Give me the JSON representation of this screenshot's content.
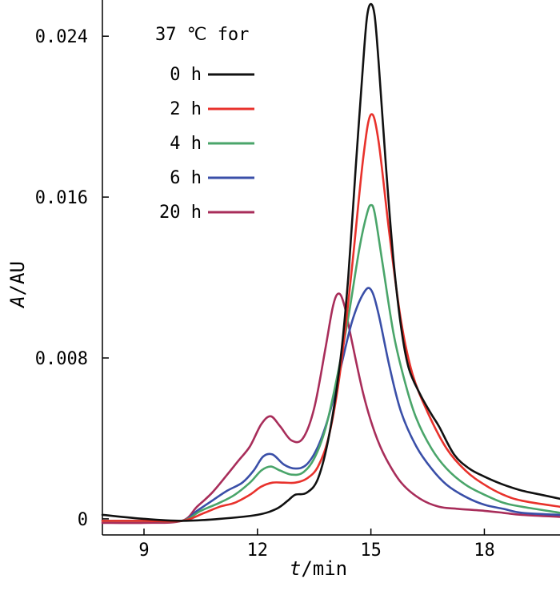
{
  "chart_data": {
    "type": "line",
    "xlabel_italic": "t",
    "xlabel_unit": "/min",
    "ylabel_italic": "A",
    "ylabel_unit": "/AU",
    "xlim": [
      7.9,
      20.0
    ],
    "ylim": [
      -0.0008,
      0.0258
    ],
    "x_ticks": [
      9,
      12,
      15,
      18
    ],
    "x_tick_labels": [
      "9",
      "12",
      "15",
      "18"
    ],
    "y_ticks": [
      0,
      0.008,
      0.016,
      0.024
    ],
    "y_tick_labels": [
      "0",
      "0.008",
      "0.016",
      "0.024"
    ],
    "legend_title": "37 ℃ for",
    "legend_placement": "top-left",
    "series": [
      {
        "name": "0 h",
        "color": "#111111",
        "x": [
          7.9,
          9.0,
          10.0,
          11.0,
          12.0,
          12.5,
          12.8,
          13.0,
          13.3,
          13.6,
          13.9,
          14.2,
          14.4,
          14.6,
          14.8,
          14.9,
          15.0,
          15.1,
          15.2,
          15.4,
          15.6,
          15.8,
          16.0,
          16.3,
          16.6,
          16.8,
          17.2,
          17.6,
          18.0,
          18.5,
          19.0,
          19.5,
          20.0
        ],
        "y": [
          0.0002,
          0.0,
          -0.0001,
          0.0,
          0.0002,
          0.0005,
          0.0009,
          0.0012,
          0.0013,
          0.002,
          0.0042,
          0.008,
          0.012,
          0.0175,
          0.0228,
          0.025,
          0.0256,
          0.025,
          0.0228,
          0.0175,
          0.0128,
          0.0095,
          0.0075,
          0.0062,
          0.0052,
          0.0046,
          0.0032,
          0.0025,
          0.0021,
          0.0017,
          0.0014,
          0.0012,
          0.001
        ]
      },
      {
        "name": "2 h",
        "color": "#e8322c",
        "x": [
          7.9,
          9.0,
          10.0,
          10.6,
          11.0,
          11.4,
          11.8,
          12.1,
          12.4,
          12.7,
          13.0,
          13.3,
          13.6,
          13.9,
          14.2,
          14.5,
          14.8,
          15.0,
          15.2,
          15.5,
          15.8,
          16.1,
          16.5,
          17.0,
          17.5,
          18.0,
          18.5,
          19.0,
          20.0
        ],
        "y": [
          -0.0001,
          -0.0001,
          -0.0001,
          0.0003,
          0.0006,
          0.0008,
          0.0012,
          0.0016,
          0.0018,
          0.0018,
          0.0018,
          0.002,
          0.0026,
          0.0042,
          0.0075,
          0.0125,
          0.018,
          0.0201,
          0.0188,
          0.014,
          0.0098,
          0.0072,
          0.0053,
          0.0035,
          0.0024,
          0.0017,
          0.0012,
          0.0009,
          0.0006
        ]
      },
      {
        "name": "4 h",
        "color": "#4aa56a",
        "x": [
          7.9,
          9.0,
          10.0,
          10.5,
          11.0,
          11.4,
          11.8,
          12.1,
          12.35,
          12.6,
          12.9,
          13.2,
          13.5,
          13.8,
          14.1,
          14.4,
          14.7,
          14.9,
          15.0,
          15.1,
          15.3,
          15.6,
          15.9,
          16.2,
          16.6,
          17.0,
          17.5,
          18.0,
          18.5,
          19.0,
          20.0
        ],
        "y": [
          -0.0001,
          -0.0001,
          -0.0001,
          0.0004,
          0.0008,
          0.0012,
          0.0018,
          0.0024,
          0.0026,
          0.0024,
          0.0022,
          0.0023,
          0.003,
          0.0045,
          0.007,
          0.01,
          0.0135,
          0.0152,
          0.0156,
          0.0152,
          0.0128,
          0.0092,
          0.0068,
          0.005,
          0.0035,
          0.0025,
          0.0017,
          0.0012,
          0.0008,
          0.0006,
          0.0003
        ]
      },
      {
        "name": "6 h",
        "color": "#3a4fa8",
        "x": [
          7.9,
          9.0,
          10.0,
          10.4,
          10.8,
          11.2,
          11.6,
          11.9,
          12.15,
          12.4,
          12.7,
          13.0,
          13.3,
          13.6,
          13.9,
          14.2,
          14.5,
          14.8,
          15.0,
          15.2,
          15.5,
          15.8,
          16.2,
          16.6,
          17.0,
          17.5,
          18.0,
          18.5,
          19.0,
          20.0
        ],
        "y": [
          -0.0001,
          -0.0001,
          -0.0001,
          0.0004,
          0.0009,
          0.0014,
          0.0018,
          0.0024,
          0.0031,
          0.0032,
          0.0027,
          0.0025,
          0.0027,
          0.0036,
          0.0052,
          0.0075,
          0.0098,
          0.0112,
          0.0114,
          0.0102,
          0.0075,
          0.0053,
          0.0036,
          0.0025,
          0.0017,
          0.0011,
          0.0007,
          0.0005,
          0.0003,
          0.0002
        ]
      },
      {
        "name": "20 h",
        "color": "#a82d5a",
        "x": [
          7.9,
          9.0,
          10.0,
          10.4,
          10.8,
          11.2,
          11.5,
          11.8,
          12.1,
          12.35,
          12.6,
          12.9,
          13.2,
          13.5,
          13.8,
          14.0,
          14.15,
          14.3,
          14.5,
          14.8,
          15.1,
          15.4,
          15.8,
          16.3,
          16.8,
          17.3,
          18.0,
          18.5,
          19.0,
          20.0
        ],
        "y": [
          -0.0002,
          -0.0002,
          -0.0001,
          0.0006,
          0.0013,
          0.0022,
          0.0029,
          0.0036,
          0.0047,
          0.0051,
          0.0046,
          0.0039,
          0.004,
          0.0055,
          0.0085,
          0.0106,
          0.0112,
          0.0106,
          0.0088,
          0.0062,
          0.0043,
          0.003,
          0.0018,
          0.001,
          0.0006,
          0.0005,
          0.0004,
          0.0003,
          0.0002,
          0.0001
        ]
      }
    ]
  }
}
